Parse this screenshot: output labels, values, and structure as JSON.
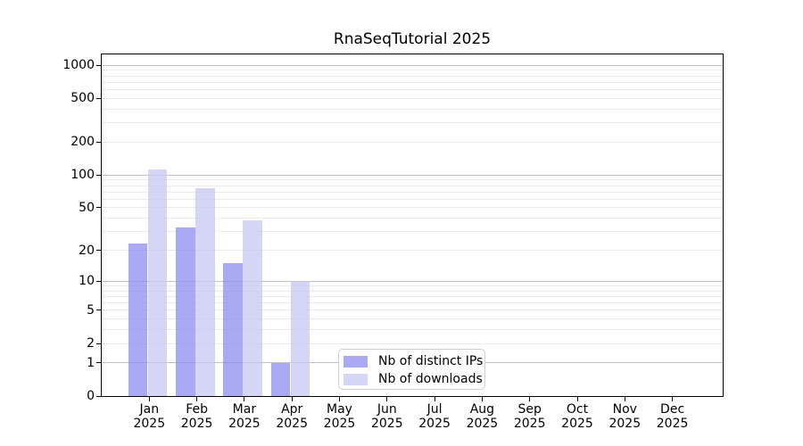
{
  "chart_data": {
    "type": "bar",
    "title": "RnaSeqTutorial 2025",
    "scale": "symlog",
    "categories": [
      "Jan",
      "Feb",
      "Mar",
      "Apr",
      "May",
      "Jun",
      "Jul",
      "Aug",
      "Sep",
      "Oct",
      "Nov",
      "Dec"
    ],
    "year_line": "2025",
    "series": [
      {
        "name": "Nb of distinct IPs",
        "color": "rgba(141,141,240,0.75)",
        "values": [
          23,
          33,
          15,
          1,
          0,
          0,
          0,
          0,
          0,
          0,
          0,
          0
        ]
      },
      {
        "name": "Nb of downloads",
        "color": "rgba(199,199,241,0.75)",
        "values": [
          112,
          75,
          38,
          10,
          0,
          0,
          0,
          0,
          0,
          0,
          0,
          0
        ]
      }
    ],
    "y_ticks": [
      0,
      1,
      2,
      5,
      10,
      20,
      50,
      100,
      200,
      500,
      1000
    ],
    "y_major_gridlines": [
      1,
      10,
      100,
      1000
    ],
    "y_minor_gridlines": [
      2,
      3,
      4,
      5,
      6,
      7,
      8,
      9,
      20,
      30,
      40,
      50,
      60,
      70,
      80,
      90,
      200,
      300,
      400,
      500,
      600,
      700,
      800,
      900
    ],
    "ylim": [
      0,
      1250
    ],
    "grid": true,
    "legend_position": "lower center",
    "colors": {
      "major_grid": "#c0c0c0",
      "minor_grid": "#ebebeb",
      "axis": "#000000",
      "text": "#000000",
      "legend_border": "#cfcfcf",
      "legend_bg": "#ffffff"
    }
  }
}
